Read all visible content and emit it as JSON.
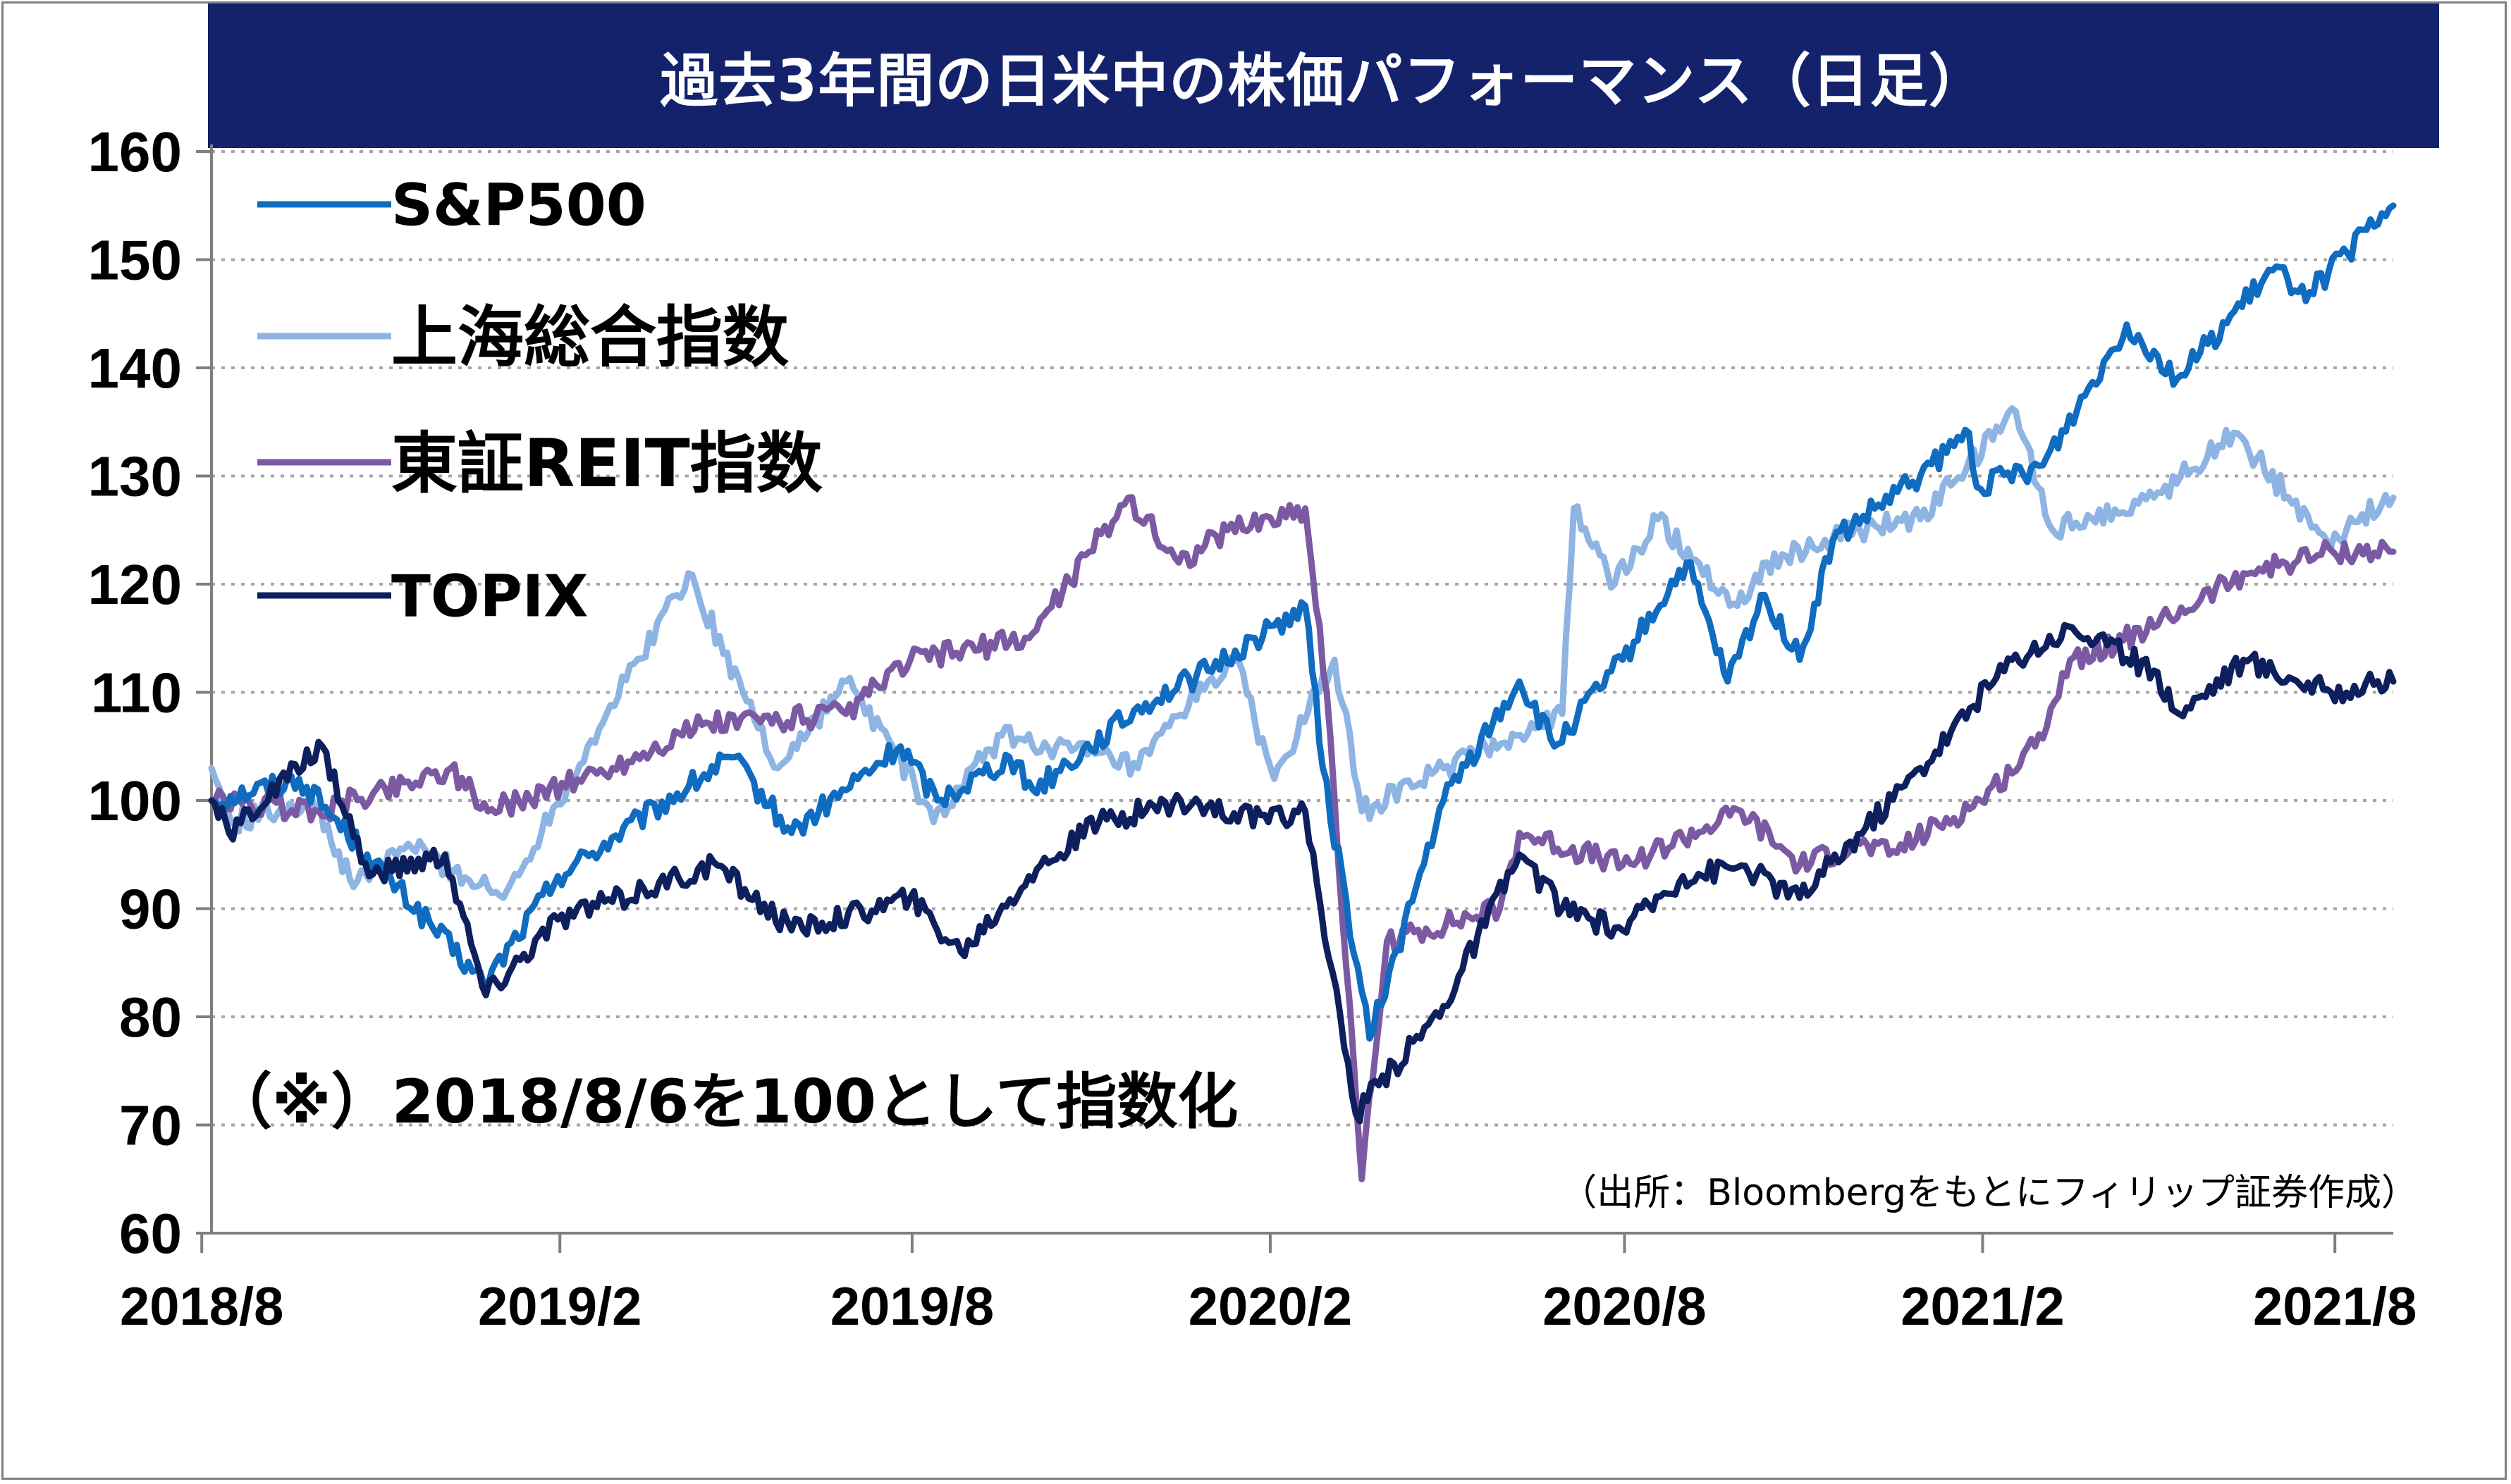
{
  "title": "過去3年間の日米中の株価パフォーマンス（日足）",
  "note": "（※）2018/8/6を100として指数化",
  "source": "（出所：Bloombergをもとにフィリップ証券作成）",
  "colors": {
    "title_bg": "#13226b",
    "sp500": "#0f6cc0",
    "shanghai": "#8eb4e3",
    "reit": "#7b5aa3",
    "topix": "#0d1f5c",
    "grid": "#a6a6a6"
  },
  "chart_data": {
    "type": "line",
    "title": "過去3年間の日米中の株価パフォーマンス（日足）",
    "xlabel": "",
    "ylabel": "",
    "ylim": [
      60,
      160
    ],
    "yticks": [
      160,
      150,
      140,
      130,
      120,
      110,
      100,
      90,
      80,
      70,
      60
    ],
    "x_range": [
      "2018-08-06",
      "2021-08-31"
    ],
    "xticks": [
      {
        "label": "2018/8",
        "date": "2018-08-01"
      },
      {
        "label": "2019/2",
        "date": "2019-02-01"
      },
      {
        "label": "2019/8",
        "date": "2019-08-01"
      },
      {
        "label": "2020/2",
        "date": "2020-02-01"
      },
      {
        "label": "2020/8",
        "date": "2020-08-01"
      },
      {
        "label": "2021/2",
        "date": "2021-02-01"
      },
      {
        "label": "2021/8",
        "date": "2021-08-01"
      }
    ],
    "grid": "horizontal dotted",
    "legend_position": "top-left",
    "series": [
      {
        "name": "S&P500",
        "color": "#0f6cc0",
        "points": [
          [
            "2018-08-06",
            100
          ],
          [
            "2018-09-20",
            102
          ],
          [
            "2018-10-25",
            95
          ],
          [
            "2018-12-24",
            83
          ],
          [
            "2019-01-31",
            93
          ],
          [
            "2019-04-30",
            104
          ],
          [
            "2019-05-31",
            97
          ],
          [
            "2019-07-26",
            105
          ],
          [
            "2019-08-14",
            100
          ],
          [
            "2019-09-20",
            104
          ],
          [
            "2019-10-02",
            101
          ],
          [
            "2019-11-29",
            109
          ],
          [
            "2019-12-31",
            112
          ],
          [
            "2020-02-19",
            118
          ],
          [
            "2020-02-28",
            103
          ],
          [
            "2020-03-23",
            78
          ],
          [
            "2020-04-30",
            100
          ],
          [
            "2020-06-08",
            111
          ],
          [
            "2020-06-26",
            105
          ],
          [
            "2020-07-31",
            113
          ],
          [
            "2020-09-02",
            122
          ],
          [
            "2020-09-23",
            111
          ],
          [
            "2020-10-12",
            119
          ],
          [
            "2020-10-30",
            113
          ],
          [
            "2020-11-16",
            124
          ],
          [
            "2020-12-31",
            130
          ],
          [
            "2021-01-25",
            134
          ],
          [
            "2021-01-29",
            129
          ],
          [
            "2021-03-04",
            131
          ],
          [
            "2021-04-16",
            144
          ],
          [
            "2021-05-12",
            139
          ],
          [
            "2021-06-30",
            149
          ],
          [
            "2021-07-19",
            147
          ],
          [
            "2021-08-31",
            155
          ]
        ]
      },
      {
        "name": "上海総合指数",
        "color": "#8eb4e3",
        "points": [
          [
            "2018-08-06",
            103
          ],
          [
            "2018-08-16",
            98
          ],
          [
            "2018-09-27",
            100
          ],
          [
            "2018-10-18",
            92
          ],
          [
            "2018-11-15",
            96
          ],
          [
            "2019-01-03",
            91
          ],
          [
            "2019-02-25",
            108
          ],
          [
            "2019-04-08",
            121
          ],
          [
            "2019-05-06",
            110
          ],
          [
            "2019-05-24",
            103
          ],
          [
            "2019-06-28",
            111
          ],
          [
            "2019-07-22",
            105
          ],
          [
            "2019-08-12",
            98
          ],
          [
            "2019-09-16",
            106
          ],
          [
            "2019-10-14",
            105
          ],
          [
            "2019-11-25",
            103
          ],
          [
            "2019-12-31",
            111
          ],
          [
            "2020-01-14",
            113
          ],
          [
            "2020-02-03",
            102
          ],
          [
            "2020-03-05",
            113
          ],
          [
            "2020-03-19",
            99
          ],
          [
            "2020-04-30",
            103
          ],
          [
            "2020-06-30",
            108
          ],
          [
            "2020-07-06",
            127
          ],
          [
            "2020-07-27",
            120
          ],
          [
            "2020-08-18",
            126
          ],
          [
            "2020-09-28",
            118
          ],
          [
            "2020-10-13",
            122
          ],
          [
            "2020-11-30",
            125
          ],
          [
            "2020-12-31",
            126
          ],
          [
            "2021-02-18",
            136
          ],
          [
            "2021-03-09",
            125
          ],
          [
            "2021-04-30",
            128
          ],
          [
            "2021-06-10",
            134
          ],
          [
            "2021-07-28",
            124
          ],
          [
            "2021-08-31",
            128
          ]
        ]
      },
      {
        "name": "東証REIT指数",
        "color": "#7b5aa3",
        "points": [
          [
            "2018-08-06",
            100
          ],
          [
            "2018-09-30",
            99
          ],
          [
            "2018-12-07",
            103
          ],
          [
            "2018-12-26",
            99
          ],
          [
            "2019-02-28",
            103
          ],
          [
            "2019-04-15",
            107
          ],
          [
            "2019-06-28",
            108
          ],
          [
            "2019-07-31",
            113
          ],
          [
            "2019-09-30",
            115
          ],
          [
            "2019-10-31",
            123
          ],
          [
            "2019-11-20",
            128
          ],
          [
            "2019-12-16",
            122
          ],
          [
            "2020-01-10",
            125
          ],
          [
            "2020-02-19",
            127
          ],
          [
            "2020-03-01",
            110
          ],
          [
            "2020-03-19",
            65
          ],
          [
            "2020-04-01",
            87
          ],
          [
            "2020-05-29",
            90
          ],
          [
            "2020-06-08",
            97
          ],
          [
            "2020-07-31",
            94
          ],
          [
            "2020-09-30",
            99
          ],
          [
            "2020-10-30",
            94
          ],
          [
            "2020-11-30",
            96
          ],
          [
            "2020-12-15",
            95
          ],
          [
            "2021-01-31",
            100
          ],
          [
            "2021-02-28",
            105
          ],
          [
            "2021-03-18",
            113
          ],
          [
            "2021-04-30",
            116
          ],
          [
            "2021-06-15",
            121
          ],
          [
            "2021-07-31",
            123
          ],
          [
            "2021-08-31",
            123
          ]
        ]
      },
      {
        "name": "TOPIX",
        "color": "#0d1f5c",
        "points": [
          [
            "2018-08-06",
            100
          ],
          [
            "2018-08-15",
            97
          ],
          [
            "2018-10-02",
            105
          ],
          [
            "2018-10-26",
            93
          ],
          [
            "2018-12-04",
            95
          ],
          [
            "2018-12-25",
            82
          ],
          [
            "2019-01-31",
            89
          ],
          [
            "2019-04-23",
            94
          ],
          [
            "2019-05-31",
            88
          ],
          [
            "2019-07-31",
            91
          ],
          [
            "2019-08-26",
            86
          ],
          [
            "2019-09-30",
            93
          ],
          [
            "2019-11-05",
            98
          ],
          [
            "2019-12-17",
            100
          ],
          [
            "2020-01-31",
            98
          ],
          [
            "2020-02-19",
            99
          ],
          [
            "2020-03-16",
            71
          ],
          [
            "2020-04-30",
            81
          ],
          [
            "2020-06-08",
            95
          ],
          [
            "2020-06-30",
            90
          ],
          [
            "2020-07-31",
            88
          ],
          [
            "2020-08-31",
            93
          ],
          [
            "2020-09-30",
            94
          ],
          [
            "2020-10-30",
            91
          ],
          [
            "2020-12-31",
            103
          ],
          [
            "2021-02-16",
            113
          ],
          [
            "2021-03-19",
            116
          ],
          [
            "2021-04-30",
            112
          ],
          [
            "2021-05-13",
            108
          ],
          [
            "2021-06-15",
            113
          ],
          [
            "2021-07-30",
            110
          ],
          [
            "2021-08-31",
            111
          ]
        ]
      }
    ]
  }
}
